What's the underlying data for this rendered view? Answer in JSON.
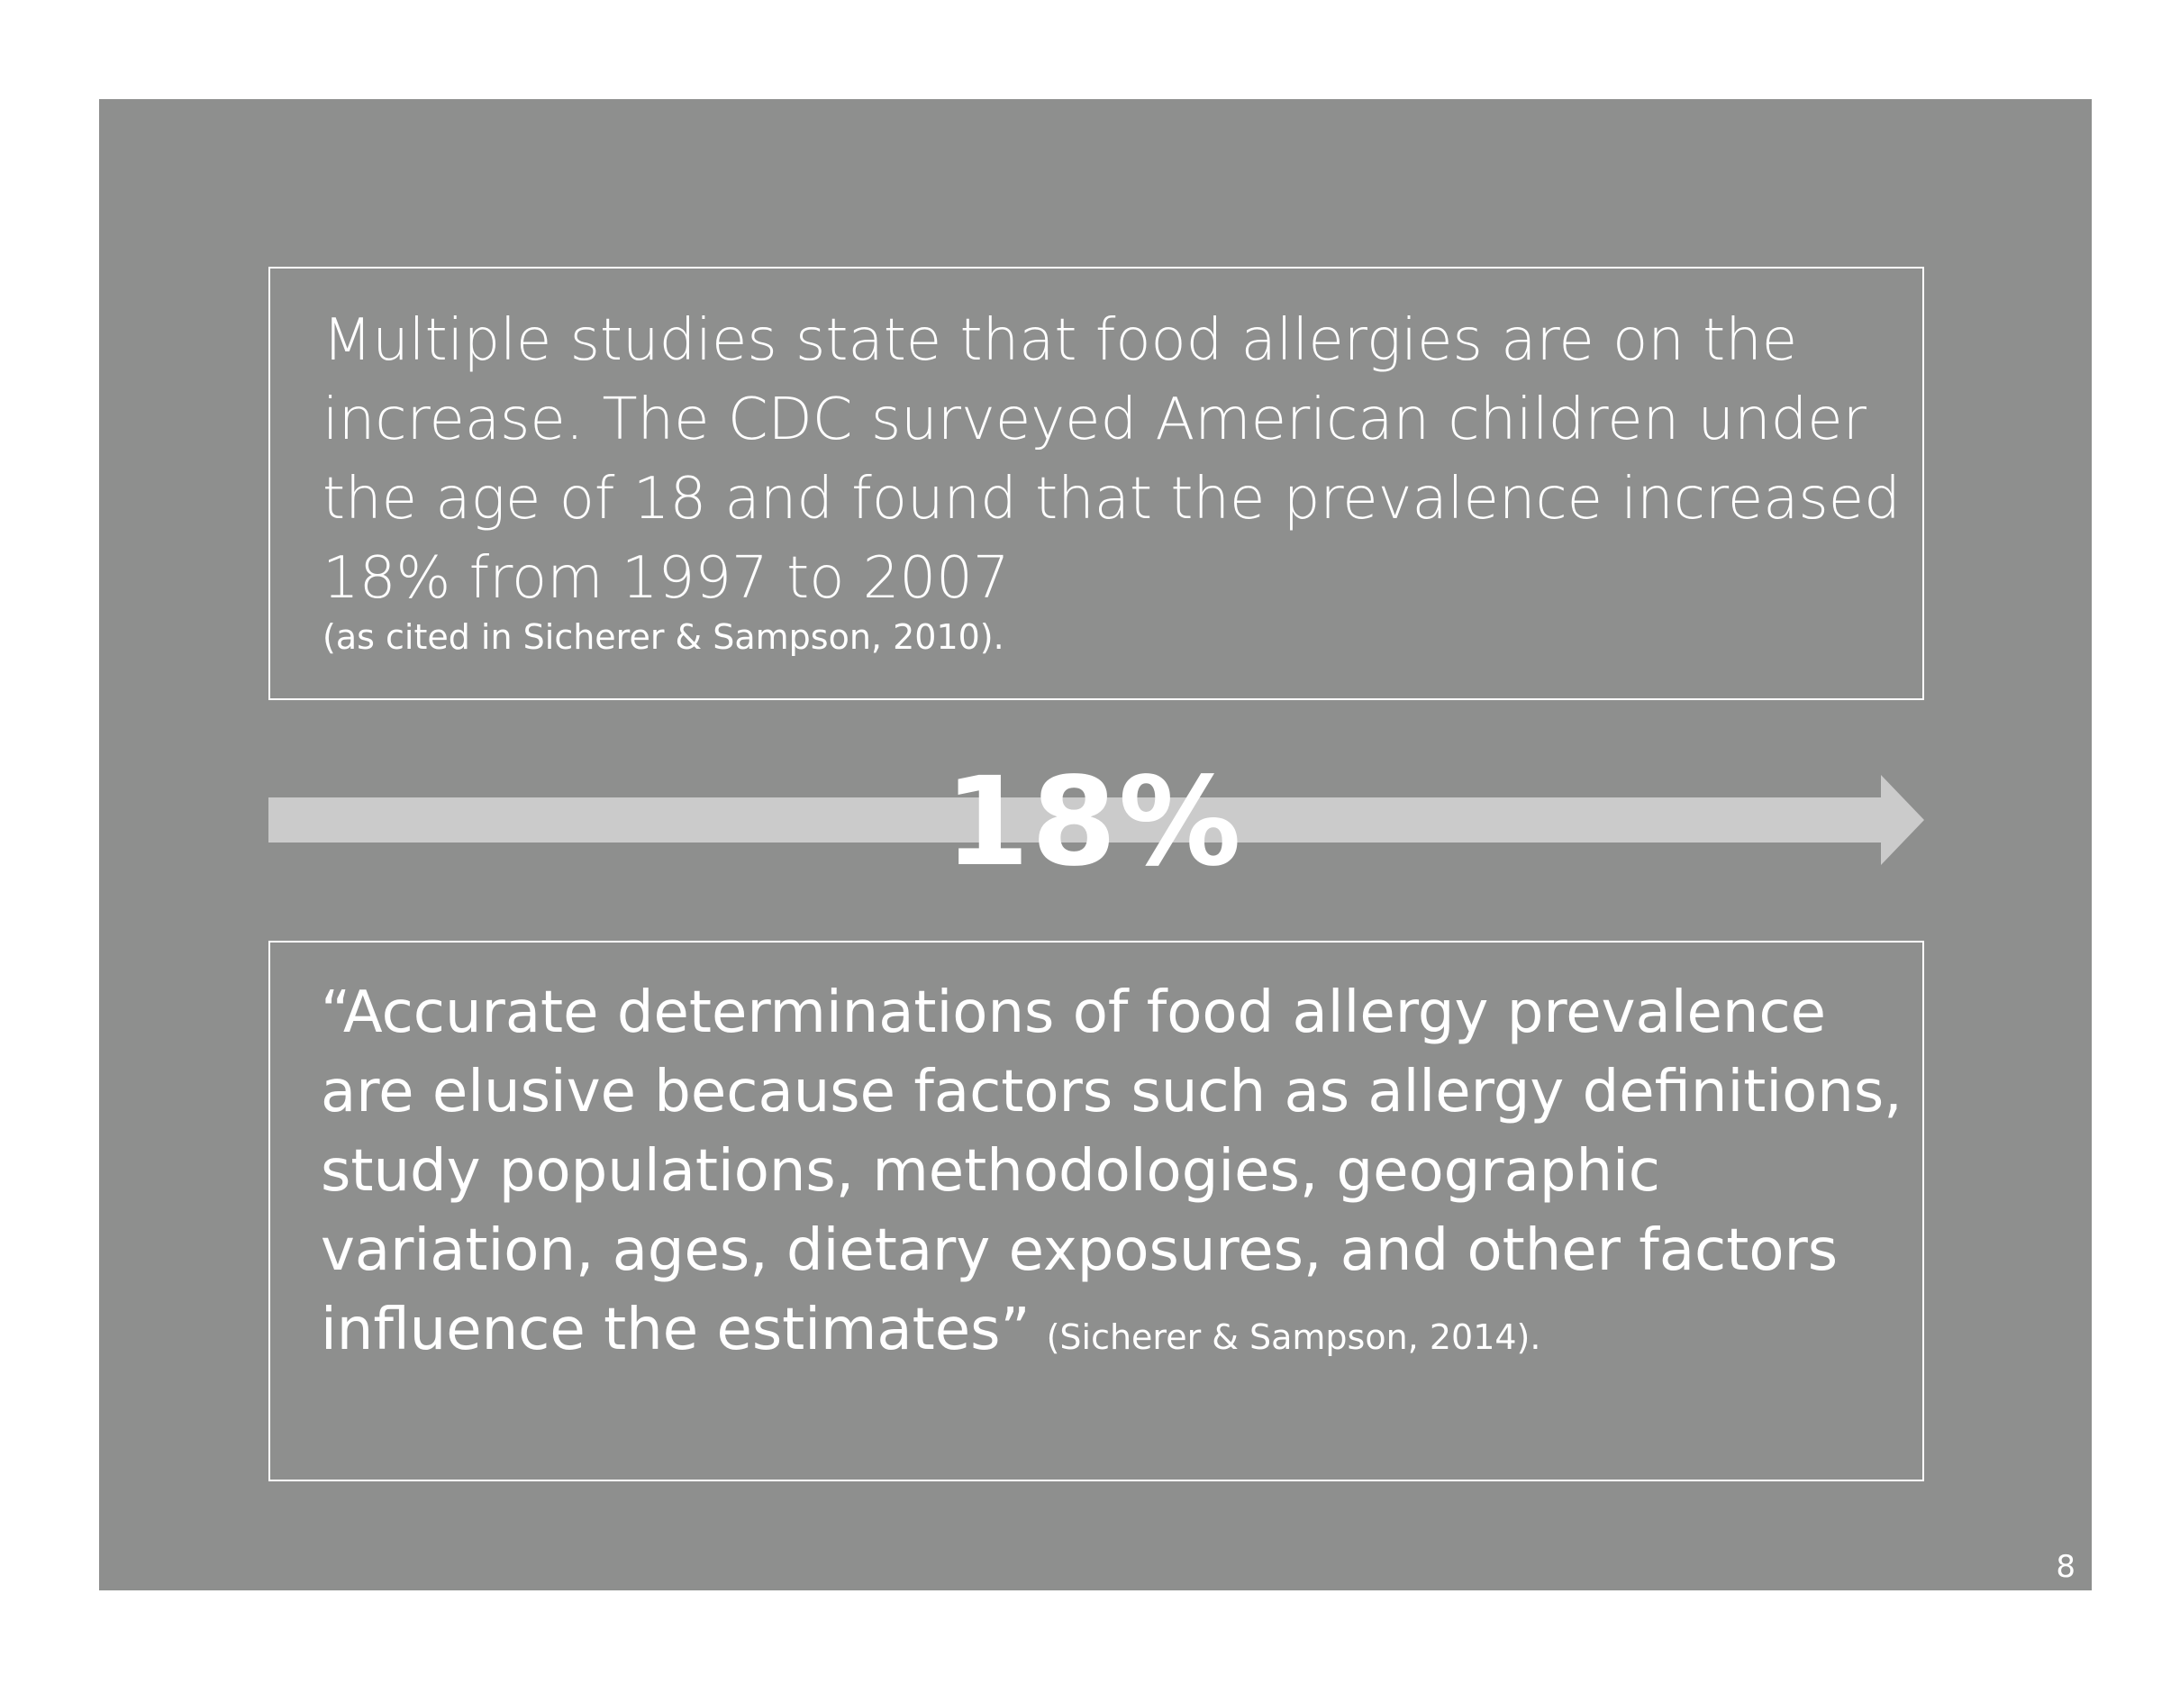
{
  "slide": {
    "top_box": {
      "text": "Multiple studies state that food allergies are on the increase. The CDC surveyed American children under the age of 18 and found that the prevalence increased 18% from 1997 to 2007",
      "citation": "(as cited in Sicherer & Sampson, 2010)."
    },
    "stat": {
      "value": "18%"
    },
    "bottom_box": {
      "quote": "“Accurate determinations of food allergy prevalence are elusive because factors such as allergy definitions, study populations, methodologies, geographic variation, ages, dietary exposures, and other factors influence the estimates”",
      "citation": "(Sicherer & Sampson, 2014)."
    },
    "page_number": "8"
  },
  "colors": {
    "background": "#8e8f8e",
    "text": "#ffffff",
    "arrow": "#cbcbcb"
  }
}
